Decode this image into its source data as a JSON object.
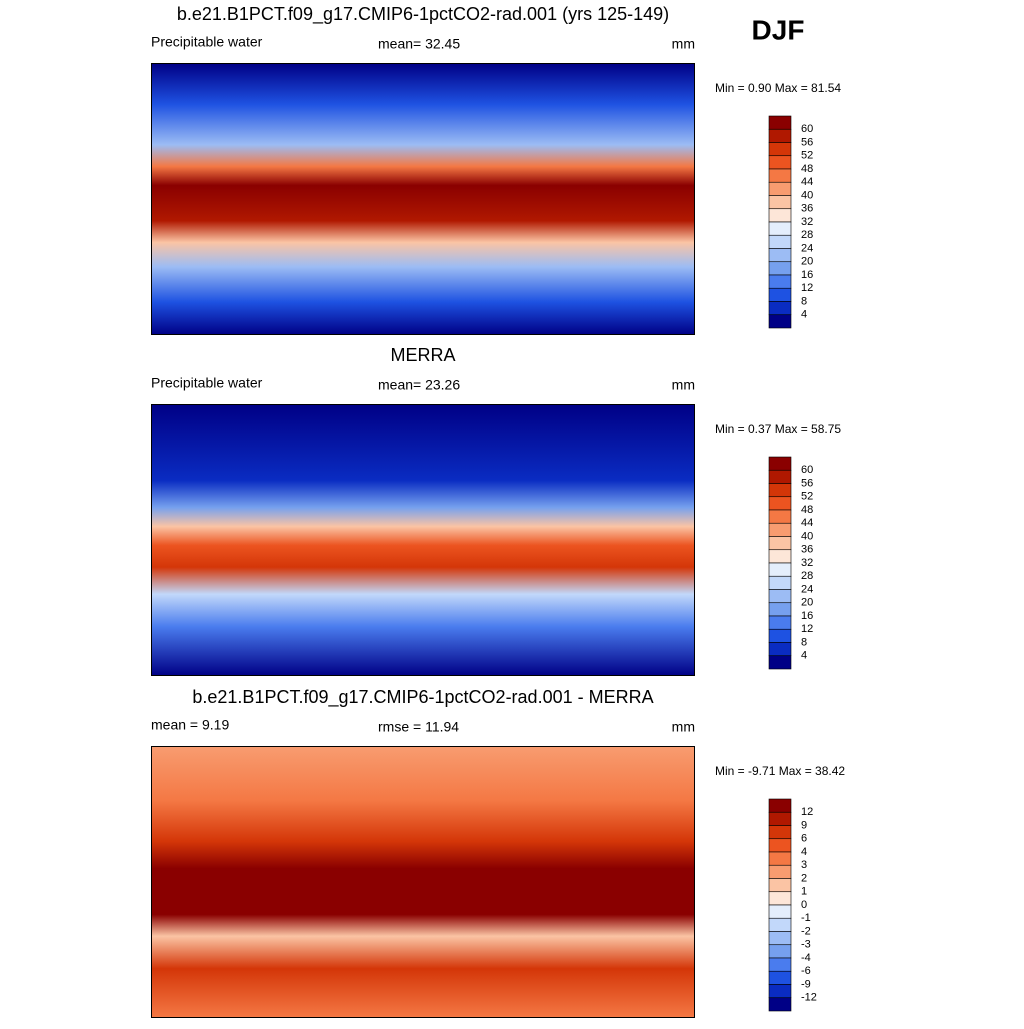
{
  "figure_label": "DJF",
  "panels": [
    {
      "title": "b.e21.B1PCT.f09_g17.CMIP6-1pctCO2-rad.001 (yrs 125-149)",
      "left": "Precipitable water",
      "center": "mean=  32.45",
      "right": "mm",
      "min_max": "Min =   0.90 Max =  81.54",
      "colorbar": {
        "labels": [
          60,
          56,
          52,
          48,
          44,
          40,
          36,
          32,
          28,
          24,
          20,
          16,
          12,
          8,
          4
        ],
        "colors": [
          "#8a0000",
          "#b01800",
          "#d43608",
          "#ec5420",
          "#f47844",
          "#f89c70",
          "#fbc4a4",
          "#fde6d8",
          "#e4eefc",
          "#c2d8fa",
          "#9cbcf4",
          "#76a0ee",
          "#4a7cee",
          "#1e52e2",
          "#0a2cc2",
          "#000086"
        ]
      }
    },
    {
      "title": "MERRA",
      "left": "Precipitable water",
      "center": "mean=  23.26",
      "right": "mm",
      "min_max": "Min =   0.37 Max =  58.75",
      "colorbar": {
        "labels": [
          60,
          56,
          52,
          48,
          44,
          40,
          36,
          32,
          28,
          24,
          20,
          16,
          12,
          8,
          4
        ],
        "colors": [
          "#8a0000",
          "#b01800",
          "#d43608",
          "#ec5420",
          "#f47844",
          "#f89c70",
          "#fbc4a4",
          "#fde6d8",
          "#e4eefc",
          "#c2d8fa",
          "#9cbcf4",
          "#76a0ee",
          "#4a7cee",
          "#1e52e2",
          "#0a2cc2",
          "#000086"
        ]
      }
    },
    {
      "title": "b.e21.B1PCT.f09_g17.CMIP6-1pctCO2-rad.001 - MERRA",
      "left": "mean =   9.19",
      "center": "rmse =  11.94",
      "right": "mm",
      "min_max": "Min =  -9.71 Max =  38.42",
      "colorbar": {
        "labels": [
          12,
          9,
          6,
          4,
          3,
          2,
          1,
          0,
          -1,
          -2,
          -3,
          -4,
          -6,
          -9,
          -12
        ],
        "colors": [
          "#8a0000",
          "#b01800",
          "#d43608",
          "#ec5420",
          "#f47844",
          "#f89c70",
          "#fbc4a4",
          "#fde6d8",
          "#e4eefc",
          "#c2d8fa",
          "#9cbcf4",
          "#76a0ee",
          "#4a7cee",
          "#1e52e2",
          "#0a2cc2",
          "#000086"
        ]
      }
    }
  ]
}
